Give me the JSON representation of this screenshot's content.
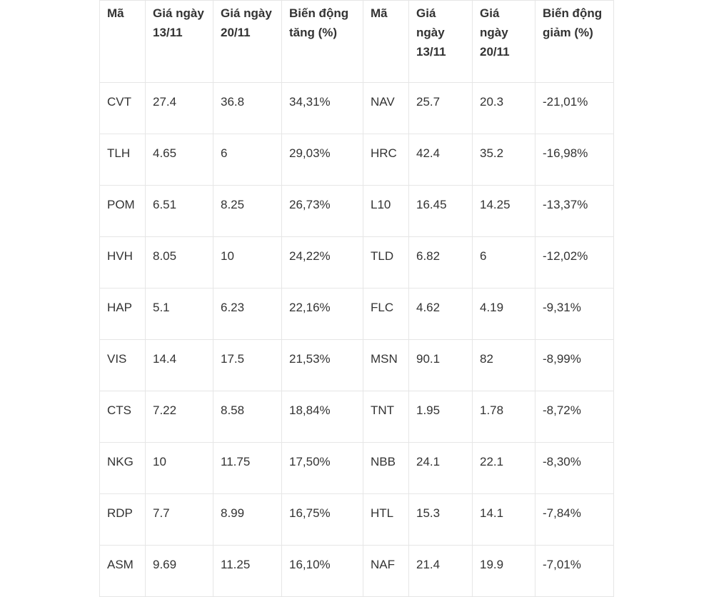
{
  "table": {
    "headers": [
      "Mã",
      "Giá ngày 13/11",
      "Giá ngày 20/11",
      "Biến động tăng (%)",
      "Mã",
      "Giá ngày 13/11",
      "Giá ngày 20/11",
      "Biến động giảm (%)"
    ],
    "rows": [
      [
        "CVT",
        "27.4",
        "36.8",
        "34,31%",
        "NAV",
        "25.7",
        "20.3",
        "-21,01%"
      ],
      [
        "TLH",
        "4.65",
        "6",
        "29,03%",
        "HRC",
        "42.4",
        "35.2",
        "-16,98%"
      ],
      [
        "POM",
        "6.51",
        "8.25",
        "26,73%",
        "L10",
        "16.45",
        "14.25",
        "-13,37%"
      ],
      [
        "HVH",
        "8.05",
        "10",
        "24,22%",
        "TLD",
        "6.82",
        "6",
        "-12,02%"
      ],
      [
        "HAP",
        "5.1",
        "6.23",
        "22,16%",
        "FLC",
        "4.62",
        "4.19",
        "-9,31%"
      ],
      [
        "VIS",
        "14.4",
        "17.5",
        "21,53%",
        "MSN",
        "90.1",
        "82",
        "-8,99%"
      ],
      [
        "CTS",
        "7.22",
        "8.58",
        "18,84%",
        "TNT",
        "1.95",
        "1.78",
        "-8,72%"
      ],
      [
        "NKG",
        "10",
        "11.75",
        "17,50%",
        "NBB",
        "24.1",
        "22.1",
        "-8,30%"
      ],
      [
        "RDP",
        "7.7",
        "8.99",
        "16,75%",
        "HTL",
        "15.3",
        "14.1",
        "-7,84%"
      ],
      [
        "ASM",
        "9.69",
        "11.25",
        "16,10%",
        "NAF",
        "21.4",
        "19.9",
        "-7,01%"
      ]
    ]
  }
}
